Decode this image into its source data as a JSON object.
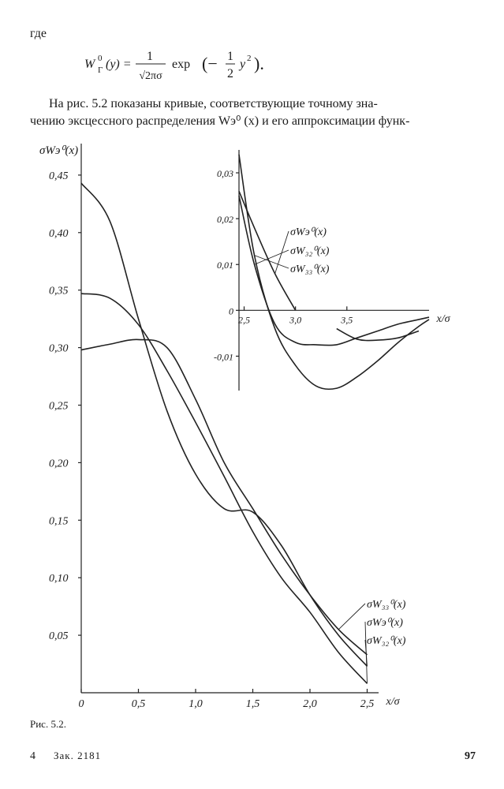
{
  "text": {
    "where": "где",
    "formula": {
      "lhs": "W",
      "lhs_sup": "0",
      "lhs_sub": "Г",
      "arg": "(y) =",
      "frac1_num": "1",
      "frac1_den": "√2πσ",
      "exp": "exp",
      "open": "(−",
      "frac2_num": "1",
      "frac2_den": "2",
      "var": "y",
      "var_sup": "2",
      "close": ")."
    },
    "paragraph": [
      "На рис. 5.2 показаны кривые, соответствующие точному зна-",
      "чению эксцессного распределения Wэ⁰ (x) и его аппроксимации функ-"
    ]
  },
  "chart_data": [
    {
      "type": "line",
      "ylabel": "σWэ⁰(x)",
      "xlabel": "x/σ",
      "x": [
        0,
        0.25,
        0.5,
        0.75,
        1.0,
        1.25,
        1.5,
        1.75,
        2.0,
        2.25,
        2.5
      ],
      "xlim": [
        0,
        2.6
      ],
      "ylim": [
        0,
        0.475
      ],
      "xticks": [
        0,
        {
          "value": 0.5,
          "label": "0,5"
        },
        {
          "value": 1.0,
          "label": "1,0"
        },
        {
          "value": 1.5,
          "label": "1,5"
        },
        {
          "value": 2.0,
          "label": "2,0"
        },
        {
          "value": 2.5,
          "label": "2,5"
        }
      ],
      "yticks": [
        {
          "value": 0.05,
          "label": "0,05"
        },
        {
          "value": 0.1,
          "label": "0,10"
        },
        {
          "value": 0.15,
          "label": "0,15"
        },
        {
          "value": 0.2,
          "label": "0,20"
        },
        {
          "value": 0.25,
          "label": "0,25"
        },
        {
          "value": 0.3,
          "label": "0,30"
        },
        {
          "value": 0.35,
          "label": "0,35"
        },
        {
          "value": 0.4,
          "label": "0,40"
        },
        {
          "value": 0.45,
          "label": "0,45"
        }
      ],
      "series": [
        {
          "name": "σW₃₃⁰(x)",
          "color": "#222222",
          "values": [
            0.298,
            0.303,
            0.307,
            0.3,
            0.255,
            0.2,
            0.16,
            0.12,
            0.085,
            0.055,
            0.033
          ]
        },
        {
          "name": "σWэ⁰(x)",
          "color": "#222222",
          "values": [
            0.347,
            0.343,
            0.32,
            0.28,
            0.235,
            0.188,
            0.14,
            0.1,
            0.07,
            0.035,
            0.008
          ]
        },
        {
          "name": "σW₃₂⁰(x)",
          "color": "#222222",
          "values": [
            0.443,
            0.41,
            0.325,
            0.245,
            0.19,
            0.16,
            0.157,
            0.128,
            0.085,
            0.05,
            0.023
          ]
        }
      ]
    },
    {
      "type": "line",
      "xlabel": "x/σ",
      "x": [
        2.45,
        2.6,
        2.8,
        3.0,
        3.2,
        3.4,
        3.6,
        3.8,
        4.0,
        4.2,
        4.3
      ],
      "xlim": [
        2.45,
        4.3
      ],
      "ylim": [
        -0.0175,
        0.035
      ],
      "xticks": [
        {
          "value": 2.5,
          "label": "2,5"
        },
        {
          "value": 3.0,
          "label": "3,0"
        },
        {
          "value": 3.5,
          "label": "3,5"
        }
      ],
      "yticks": [
        {
          "value": -0.01,
          "label": "-0,01"
        },
        0,
        {
          "value": 0.01,
          "label": "0,01"
        },
        {
          "value": 0.02,
          "label": "0,02"
        },
        {
          "value": 0.03,
          "label": "0,03"
        }
      ],
      "series": [
        {
          "name": "σWэ⁰(x)",
          "color": "#222222",
          "values": [
            0.026,
            0.018,
            0.008,
            0.0,
            null,
            -0.004,
            -0.0063,
            -0.0065,
            -0.006,
            -0.0045,
            null
          ]
        },
        {
          "name": "σW₃₂⁰(x)",
          "color": "#222222",
          "values": [
            0.025,
            0.01,
            -0.003,
            -0.007,
            -0.0075,
            -0.0075,
            -0.006,
            -0.0045,
            -0.003,
            -0.002,
            -0.0015
          ]
        },
        {
          "name": "σW₃₃⁰(x)",
          "color": "#222222",
          "values": [
            0.034,
            0.012,
            -0.004,
            -0.012,
            -0.0165,
            -0.017,
            -0.0145,
            -0.011,
            -0.007,
            -0.0035,
            -0.002
          ]
        }
      ]
    }
  ],
  "caption": "Рис. 5.2.",
  "footer": {
    "signature": "4",
    "order": "Зак. 2181",
    "page": "97"
  }
}
